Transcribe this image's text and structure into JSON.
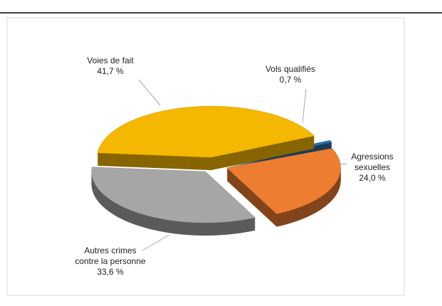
{
  "chart_data": {
    "type": "pie3d",
    "categories": [
      "Voies de fait",
      "Vols qualifiés",
      "Agressions sexuelles",
      "Autres crimes contre la personne"
    ],
    "values": [
      41.7,
      0.7,
      24.0,
      33.6
    ],
    "value_labels": [
      "41,7 %",
      "0,7 %",
      "24,0 %",
      "33,6 %"
    ],
    "colors": [
      "#f5b800",
      "#2e6da4",
      "#ed7d31",
      "#a6a6a6"
    ]
  }
}
